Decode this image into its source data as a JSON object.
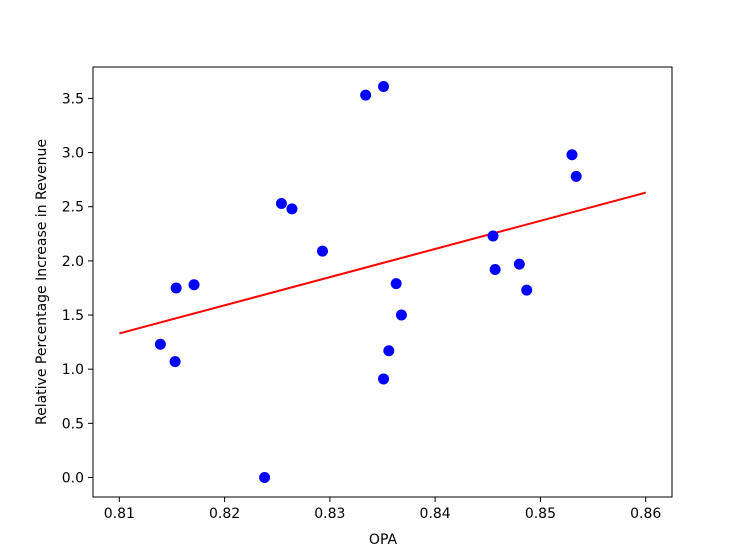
{
  "chart_data": {
    "type": "scatter",
    "xlabel": "OPA",
    "ylabel": "Relative Percentage Increase in Revenue",
    "xlim": [
      0.8075,
      0.8625
    ],
    "ylim": [
      -0.18,
      3.79
    ],
    "x_ticks": [
      "0.81",
      "0.82",
      "0.83",
      "0.84",
      "0.85",
      "0.86"
    ],
    "y_ticks": [
      "0.0",
      "0.5",
      "1.0",
      "1.5",
      "2.0",
      "2.5",
      "3.0",
      "3.5"
    ],
    "grid": false,
    "legend": "none",
    "colors": {
      "points": "#0000ff",
      "fit_line": "#ff0000"
    },
    "series": [
      {
        "type": "scatter",
        "points": [
          [
            0.8139,
            1.23
          ],
          [
            0.8153,
            1.07
          ],
          [
            0.8154,
            1.75
          ],
          [
            0.8171,
            1.78
          ],
          [
            0.8238,
            0.0
          ],
          [
            0.8254,
            2.53
          ],
          [
            0.8264,
            2.48
          ],
          [
            0.8293,
            2.09
          ],
          [
            0.8334,
            3.53
          ],
          [
            0.8351,
            3.61
          ],
          [
            0.8351,
            0.91
          ],
          [
            0.8356,
            1.17
          ],
          [
            0.8363,
            1.79
          ],
          [
            0.8368,
            1.5
          ],
          [
            0.8455,
            2.23
          ],
          [
            0.8457,
            1.92
          ],
          [
            0.848,
            1.97
          ],
          [
            0.8487,
            1.73
          ],
          [
            0.853,
            2.98
          ],
          [
            0.8534,
            2.78
          ]
        ]
      },
      {
        "type": "line",
        "points": [
          [
            0.81,
            1.33
          ],
          [
            0.86,
            2.63
          ]
        ]
      }
    ]
  }
}
